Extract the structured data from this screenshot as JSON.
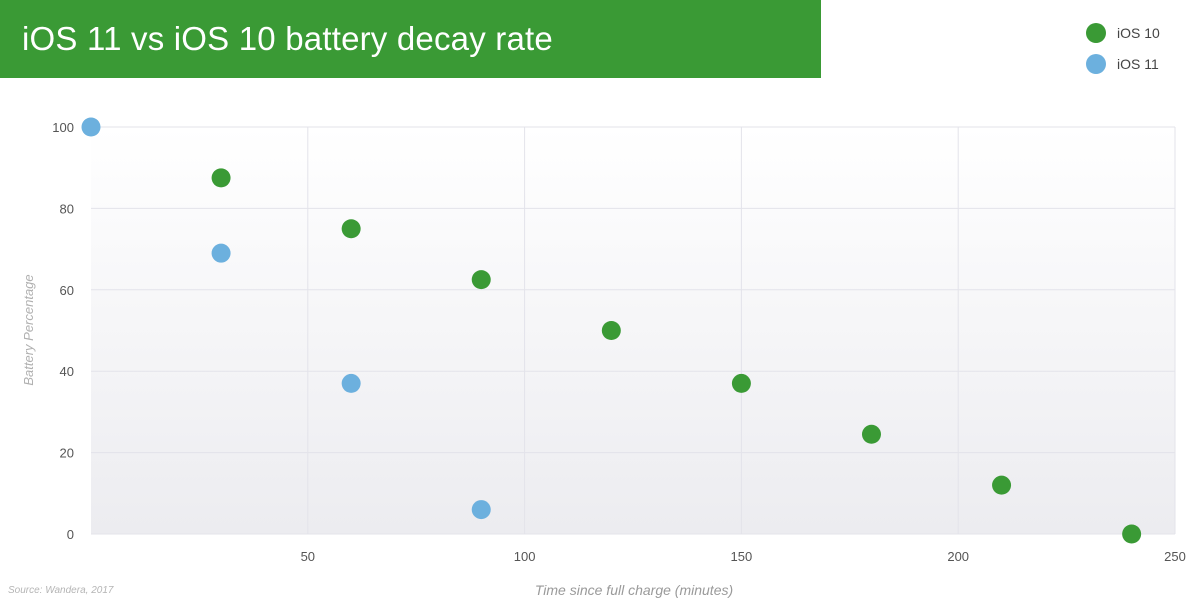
{
  "chart_data": {
    "type": "scatter",
    "title": "iOS 11 vs iOS 10 battery decay rate",
    "xlabel": "Time since full charge (minutes)",
    "ylabel": "Battery Percentage",
    "xlim": [
      0,
      250
    ],
    "ylim": [
      0,
      100
    ],
    "xticks": [
      50,
      100,
      150,
      200,
      250
    ],
    "yticks": [
      0,
      20,
      40,
      60,
      80,
      100
    ],
    "grid": true,
    "legend_position": "top-right",
    "series": [
      {
        "name": "iOS 10",
        "color": "#3a9a35",
        "x": [
          30,
          60,
          90,
          120,
          150,
          180,
          210,
          240
        ],
        "y": [
          87.5,
          75,
          62.5,
          50,
          37,
          24.5,
          12,
          0
        ]
      },
      {
        "name": "iOS 11",
        "color": "#6cb0de",
        "x": [
          0,
          30,
          60,
          90
        ],
        "y": [
          100,
          69,
          37,
          6
        ]
      }
    ],
    "source": "Source: Wandera, 2017"
  }
}
